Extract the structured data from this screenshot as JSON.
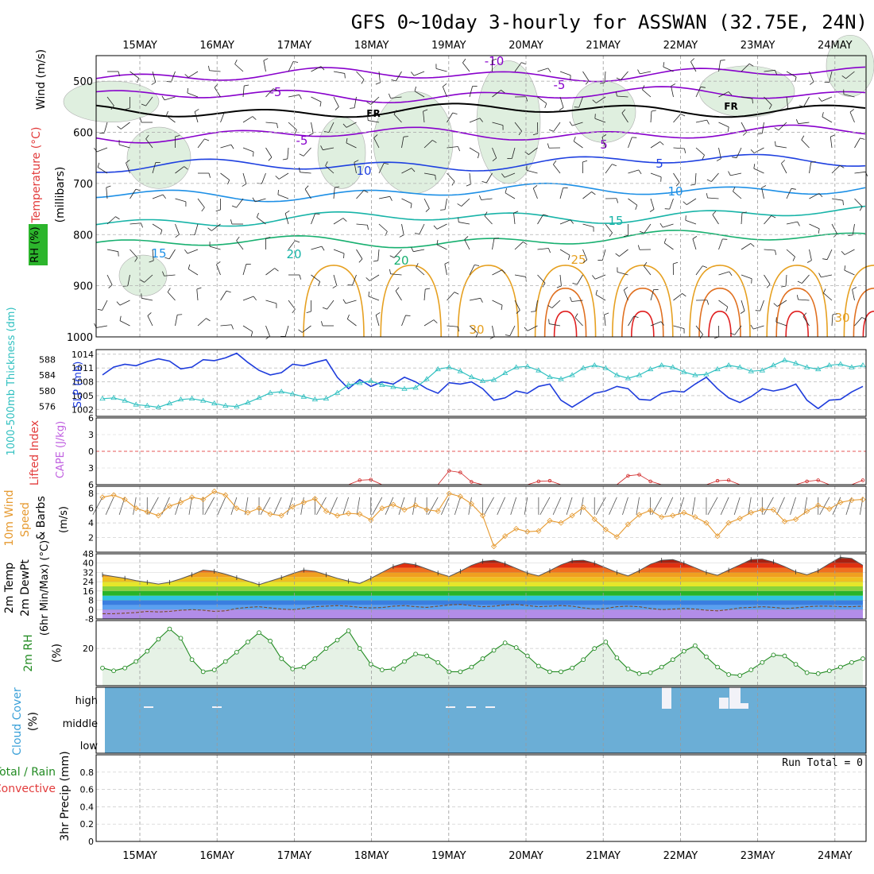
{
  "title": "GFS 0~10day 3-hourly for ASSWAN (32.75E, 24N)",
  "dates": [
    "15MAY",
    "16MAY",
    "17MAY",
    "18MAY",
    "19MAY",
    "20MAY",
    "21MAY",
    "22MAY",
    "23MAY",
    "24MAY"
  ],
  "colors": {
    "purple": "#8800cc",
    "black": "#000000",
    "blue": "#1e40e0",
    "skyblue": "#1e90e6",
    "teal": "#18b4a8",
    "green": "#18b070",
    "orange": "#e6a020",
    "dkorange": "#e07020",
    "red": "#e02020",
    "cyanline": "#30c0c0",
    "slp": "#1e3cdc",
    "windline": "#e69a30",
    "rhline": "#228b22",
    "cloud": "#6baed6",
    "gray": "#888888"
  },
  "chart_data": [
    {
      "type": "area",
      "panel": "upper-air",
      "ylabel_parts": [
        "Wind (m/s)",
        "Temperature (°C)",
        "RH (%)"
      ],
      "yaxis_label": "(millibars)",
      "yticks": [
        "500",
        "600",
        "700",
        "800",
        "900",
        "1000"
      ],
      "ylim": [
        1000,
        450
      ],
      "contour_labels": [
        "-10",
        "-5",
        "FR",
        "-5",
        "-5",
        "FR",
        "5",
        "5",
        "10",
        "10",
        "15",
        "15",
        "20",
        "20",
        "25",
        "30",
        "30"
      ]
    },
    {
      "type": "line",
      "panel": "slp-thickness",
      "left_label": "1000-500mb Thickness (dm)",
      "right_label": "SLP (mb)",
      "left_ticks": [
        "588",
        "584",
        "580",
        "576"
      ],
      "right_ticks": [
        "1014",
        "1011",
        "1008",
        "1005",
        "1002"
      ],
      "slp_ylim": [
        1000.5,
        1015
      ],
      "thk_ylim": [
        573.5,
        590.5
      ],
      "series": [
        {
          "name": "SLP (mb)",
          "values": [
            1009.5,
            1011.2,
            1011.8,
            1011.5,
            1012.4,
            1013.0,
            1012.5,
            1010.8,
            1011.2,
            1012.8,
            1012.6,
            1013.2,
            1014.2,
            1012.2,
            1010.5,
            1009.5,
            1010.0,
            1011.8,
            1011.5,
            1012.2,
            1012.8,
            1009.0,
            1006.5,
            1008.5,
            1007.0,
            1008.0,
            1007.5,
            1009.0,
            1008.0,
            1006.5,
            1005.5,
            1007.8,
            1007.5,
            1008.0,
            1006.5,
            1004.0,
            1004.5,
            1006.0,
            1005.5,
            1007.0,
            1007.5,
            1004.0,
            1002.5,
            1004.0,
            1005.5,
            1006.0,
            1007.0,
            1006.5,
            1004.2,
            1004.0,
            1005.5,
            1006.0,
            1005.8,
            1007.5,
            1009.0,
            1006.5,
            1004.5,
            1003.5,
            1004.8,
            1006.5,
            1006.0,
            1006.5,
            1007.5,
            1004.0,
            1002.2,
            1004.0,
            1004.2,
            1005.8,
            1007.0
          ]
        },
        {
          "name": "1000-500mb Thickness (dm)",
          "values": [
            578.0,
            578.2,
            577.5,
            576.5,
            576.2,
            575.8,
            576.8,
            577.8,
            578.0,
            577.5,
            576.8,
            576.2,
            576.0,
            577.0,
            578.2,
            579.5,
            579.8,
            579.2,
            578.5,
            577.8,
            578.0,
            579.5,
            581.5,
            582.0,
            582.5,
            581.5,
            581.0,
            580.5,
            580.8,
            583.0,
            585.5,
            586.0,
            585.0,
            583.5,
            582.5,
            582.8,
            584.5,
            586.0,
            586.2,
            585.2,
            583.5,
            583.0,
            584.0,
            585.8,
            586.5,
            585.8,
            584.0,
            583.2,
            584.0,
            585.5,
            586.5,
            586.0,
            584.8,
            584.0,
            584.2,
            585.5,
            586.5,
            586.0,
            585.0,
            585.2,
            586.5,
            587.8,
            587.0,
            586.0,
            585.5,
            586.5,
            586.8,
            586.0,
            586.5
          ]
        }
      ]
    },
    {
      "type": "line",
      "panel": "stability",
      "left_label": "Lifted Index",
      "left_label2": "CAPE (J/kg)",
      "yticks": [
        "6",
        "3",
        "0",
        "3",
        "6"
      ],
      "ylim": [
        -6,
        6
      ],
      "series": [
        {
          "name": "CAPE (J/kg)",
          "values": [
            0,
            0,
            0,
            0,
            0,
            0,
            0,
            0,
            0,
            0,
            0,
            0,
            0,
            0,
            0,
            0,
            0,
            0,
            0,
            0,
            0,
            0,
            0,
            0.8,
            0.9,
            0,
            0,
            0,
            0,
            0,
            0,
            2.5,
            2.2,
            0.5,
            0,
            0,
            0,
            0,
            0,
            0.6,
            0.7,
            0,
            0,
            0,
            0,
            0,
            0,
            1.6,
            1.8,
            0.6,
            0,
            0,
            0,
            0,
            0,
            0.7,
            0.8,
            0,
            0,
            0,
            0,
            0,
            0,
            0.6,
            0.8,
            0,
            0,
            0,
            0.8
          ]
        }
      ]
    },
    {
      "type": "line",
      "panel": "wind",
      "label_parts": [
        "10m Wind",
        "Speed",
        "& Barbs",
        "(m/s)"
      ],
      "yticks": [
        "8",
        "6",
        "4",
        "2"
      ],
      "ylim": [
        0,
        9
      ],
      "series": [
        {
          "name": "10m Wind Speed",
          "values": [
            7.5,
            7.8,
            7.2,
            6.0,
            5.5,
            5.0,
            6.3,
            6.8,
            7.5,
            7.2,
            8.3,
            7.8,
            6.0,
            5.4,
            6.0,
            5.2,
            5.0,
            6.2,
            6.8,
            7.3,
            5.6,
            5.0,
            5.3,
            5.2,
            4.4,
            6.0,
            6.5,
            5.8,
            6.4,
            5.8,
            5.6,
            8.0,
            7.6,
            6.6,
            5.0,
            0.8,
            2.2,
            3.2,
            2.8,
            2.9,
            4.3,
            4.0,
            5.0,
            6.1,
            4.5,
            3.1,
            2.1,
            3.8,
            5.1,
            5.7,
            4.8,
            5.0,
            5.4,
            4.8,
            4.0,
            2.2,
            4.0,
            4.6,
            5.4,
            5.8,
            5.8,
            4.2,
            4.5,
            5.6,
            6.4,
            5.9,
            6.8,
            7.1,
            7.2
          ]
        }
      ]
    },
    {
      "type": "area",
      "panel": "temp",
      "label_parts": [
        "2m Temp",
        "2m DewPt",
        "(6hr Min/Max) (°C)"
      ],
      "yticks": [
        "48",
        "40",
        "32",
        "24",
        "16",
        "8",
        "0",
        "-8"
      ],
      "ylim": [
        -8,
        48
      ],
      "series": [
        {
          "name": "2m Temp",
          "values": [
            30.0,
            28.5,
            27.0,
            25.0,
            23.5,
            22.0,
            23.5,
            26.5,
            30.0,
            34.0,
            33.0,
            30.5,
            27.5,
            24.5,
            21.5,
            24.5,
            27.5,
            31.0,
            34.0,
            33.0,
            30.0,
            27.0,
            24.5,
            22.5,
            27.0,
            32.0,
            37.0,
            40.0,
            38.5,
            35.0,
            31.5,
            28.5,
            33.0,
            38.0,
            41.5,
            42.5,
            39.5,
            35.5,
            31.5,
            29.0,
            33.5,
            38.5,
            42.0,
            42.5,
            40.0,
            36.0,
            32.0,
            29.0,
            33.5,
            39.0,
            42.5,
            43.0,
            40.0,
            36.0,
            32.0,
            29.5,
            34.0,
            38.5,
            43.0,
            43.5,
            41.0,
            37.0,
            32.5,
            30.0,
            33.5,
            39.5,
            45.0,
            44.0,
            38.0
          ]
        },
        {
          "name": "2m DewPt",
          "values": [
            -3.5,
            -3.5,
            -3.0,
            -2.5,
            -1.5,
            -2.0,
            -1.5,
            -0.5,
            0.0,
            -0.5,
            -1.5,
            -1.0,
            1.0,
            2.0,
            2.5,
            1.5,
            0.5,
            0.0,
            1.0,
            2.5,
            3.0,
            3.5,
            3.0,
            2.0,
            1.5,
            1.8,
            3.0,
            3.5,
            2.5,
            2.0,
            3.0,
            4.0,
            4.5,
            3.5,
            2.5,
            3.0,
            4.0,
            4.5,
            3.5,
            2.5,
            3.0,
            3.5,
            3.0,
            1.5,
            0.5,
            1.0,
            2.5,
            3.0,
            2.5,
            1.0,
            0.0,
            0.5,
            1.0,
            0.5,
            -0.5,
            -1.0,
            0.0,
            1.5,
            2.0,
            2.5,
            2.0,
            1.0,
            1.5,
            2.5,
            3.0,
            3.0,
            2.5,
            2.5,
            3.0
          ]
        }
      ]
    },
    {
      "type": "area",
      "panel": "rh",
      "label_parts": [
        "2m RH",
        "(%)"
      ],
      "yticks": [
        "20"
      ],
      "ylim": [
        0,
        35
      ],
      "series": [
        {
          "name": "2m RH",
          "values": [
            9.5,
            8.0,
            9.5,
            13.0,
            18.5,
            25.0,
            30.5,
            25.5,
            14.0,
            7.5,
            8.5,
            13.0,
            18.0,
            23.5,
            28.5,
            24.0,
            14.5,
            9.0,
            10.0,
            14.5,
            20.0,
            24.5,
            29.5,
            20.0,
            11.5,
            8.5,
            9.0,
            13.0,
            17.0,
            16.0,
            12.5,
            7.5,
            7.5,
            10.0,
            14.5,
            19.0,
            23.0,
            20.5,
            16.0,
            10.5,
            7.5,
            7.5,
            9.5,
            14.0,
            20.0,
            23.5,
            15.0,
            9.0,
            6.5,
            7.0,
            10.0,
            14.0,
            18.5,
            21.5,
            15.5,
            10.0,
            6.0,
            5.5,
            8.5,
            12.5,
            16.5,
            16.0,
            11.5,
            7.0,
            6.5,
            8.0,
            10.0,
            12.5,
            14.5
          ]
        }
      ]
    },
    {
      "type": "heatmap",
      "panel": "cloud",
      "label_parts": [
        "Cloud Cover",
        "(%)"
      ],
      "levels": [
        "high",
        "middle",
        "low"
      ]
    },
    {
      "type": "bar",
      "panel": "precip",
      "label_parts": [
        "3hr Precip (mm)",
        "Total / Rain",
        "Convective"
      ],
      "yticks": [
        "0.8",
        "0.6",
        "0.4",
        "0.2",
        "0"
      ],
      "ylim": [
        0,
        1.0
      ],
      "run_total": "Run Total = 0",
      "series": [
        {
          "name": "3hr Precip",
          "values": []
        }
      ]
    }
  ]
}
